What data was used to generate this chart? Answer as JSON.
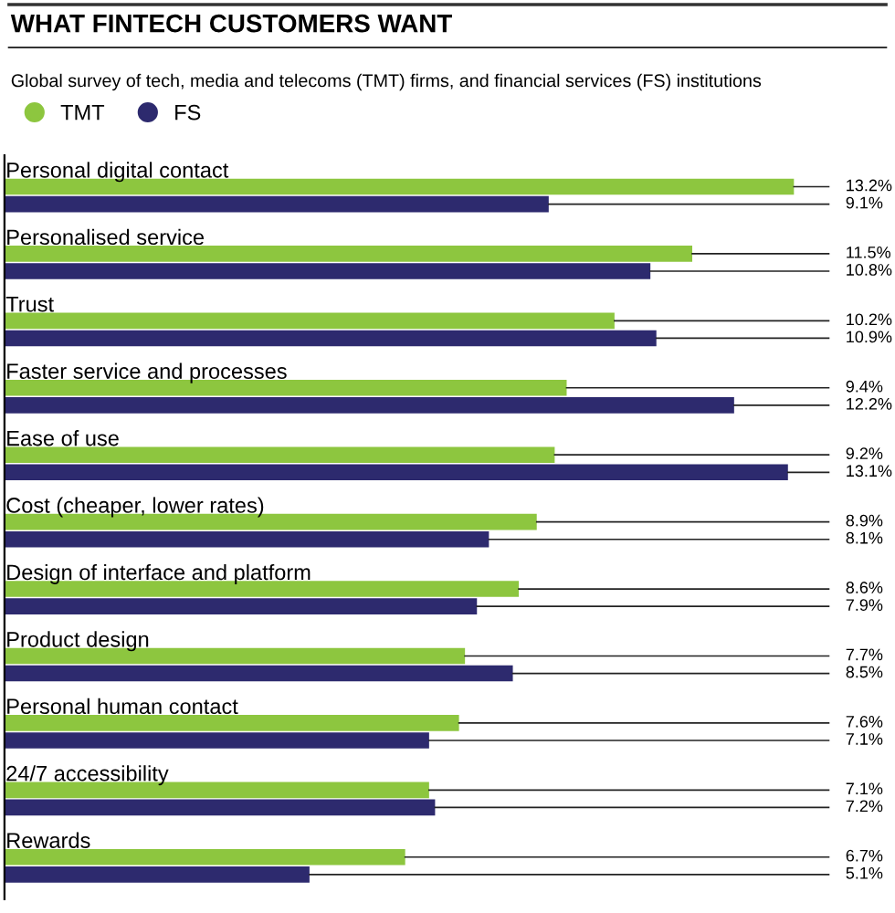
{
  "chart_data": {
    "type": "bar",
    "orientation": "horizontal",
    "title": "WHAT FINTECH CUSTOMERS WANT",
    "subtitle": "Global survey of tech, media and telecoms (TMT) firms, and financial services (FS) institutions",
    "categories": [
      "Personal digital contact",
      "Personalised service",
      "Trust",
      "Faster service and processes",
      "Ease of use",
      "Cost (cheaper, lower rates)",
      "Design of interface and platform",
      "Product design",
      "Personal human contact",
      "24/7 accessibility",
      "Rewards"
    ],
    "series": [
      {
        "name": "TMT",
        "color": "#8dc63f",
        "values": [
          13.2,
          11.5,
          10.2,
          9.4,
          9.2,
          8.9,
          8.6,
          7.7,
          7.6,
          7.1,
          6.7
        ],
        "value_labels": [
          "13.2%",
          "11.5%",
          "10.2%",
          "9.4%",
          "9.2%",
          "8.9%",
          "8.6%",
          "7.7%",
          "7.6%",
          "7.1%",
          "6.7%"
        ]
      },
      {
        "name": "FS",
        "color": "#2d2a6e",
        "values": [
          9.1,
          10.8,
          10.9,
          12.2,
          13.1,
          8.1,
          7.9,
          8.5,
          7.1,
          7.2,
          5.1
        ],
        "value_labels": [
          "9.1%",
          "10.8%",
          "10.9%",
          "12.2%",
          "13.1%",
          "8.1%",
          "7.9%",
          "8.5%",
          "7.1%",
          "7.2%",
          "5.1%"
        ]
      }
    ],
    "legend": "top left"
  }
}
